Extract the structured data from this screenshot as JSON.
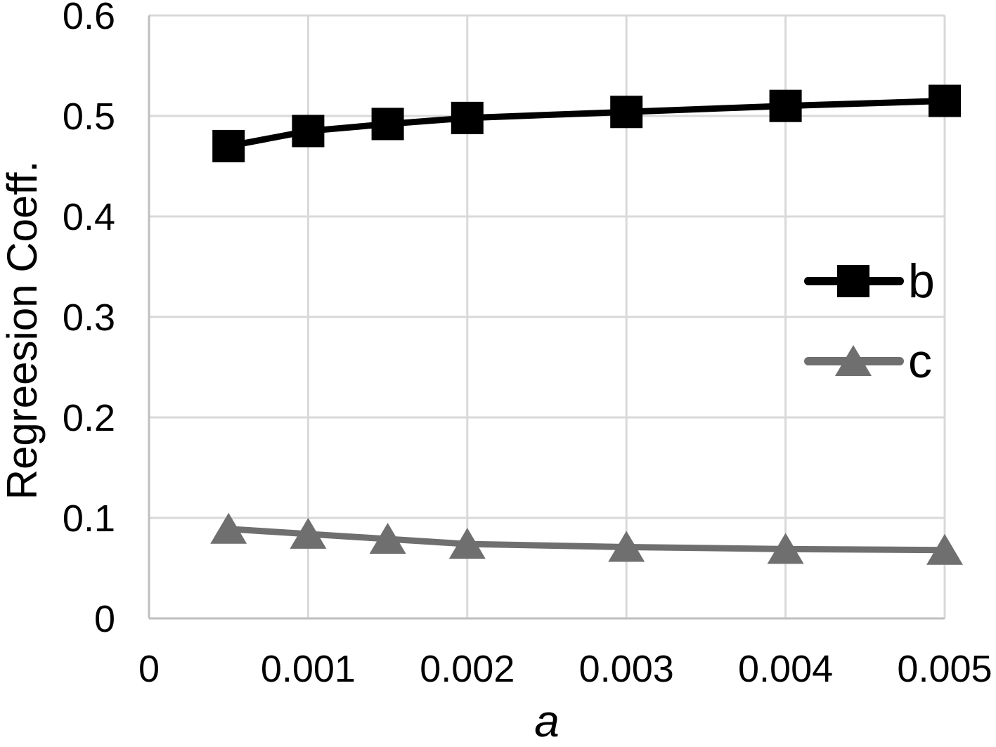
{
  "chart_data": {
    "type": "line",
    "title": "",
    "xlabel": "a",
    "ylabel": "Regreesion Coeff.",
    "x": [
      0.0005,
      0.001,
      0.0015,
      0.002,
      0.003,
      0.004,
      0.005
    ],
    "series": [
      {
        "name": "b",
        "marker": "square",
        "color": "#000000",
        "values": [
          0.47,
          0.485,
          0.492,
          0.498,
          0.504,
          0.51,
          0.515
        ]
      },
      {
        "name": "c",
        "marker": "triangle",
        "color": "#6f6f6f",
        "values": [
          0.089,
          0.084,
          0.079,
          0.074,
          0.071,
          0.069,
          0.068
        ]
      }
    ],
    "xlim": [
      0,
      0.005
    ],
    "ylim": [
      0,
      0.6
    ],
    "x_ticks": {
      "values": [
        0,
        0.001,
        0.002,
        0.003,
        0.004,
        0.005
      ],
      "labels": [
        "0",
        "0.001",
        "0.002",
        "0.003",
        "0.004",
        "0.005"
      ]
    },
    "y_ticks": {
      "values": [
        0,
        0.1,
        0.2,
        0.3,
        0.4,
        0.5,
        0.6
      ],
      "labels": [
        "0",
        "0.1",
        "0.2",
        "0.3",
        "0.4",
        "0.5",
        "0.6"
      ]
    },
    "grid": true,
    "legend": {
      "position": "center-right",
      "entries": [
        "b",
        "c"
      ]
    },
    "colors": {
      "gridline": "#d9d9d9",
      "axis": "#bfbfbf",
      "text": "#000000",
      "background": "#ffffff"
    }
  }
}
